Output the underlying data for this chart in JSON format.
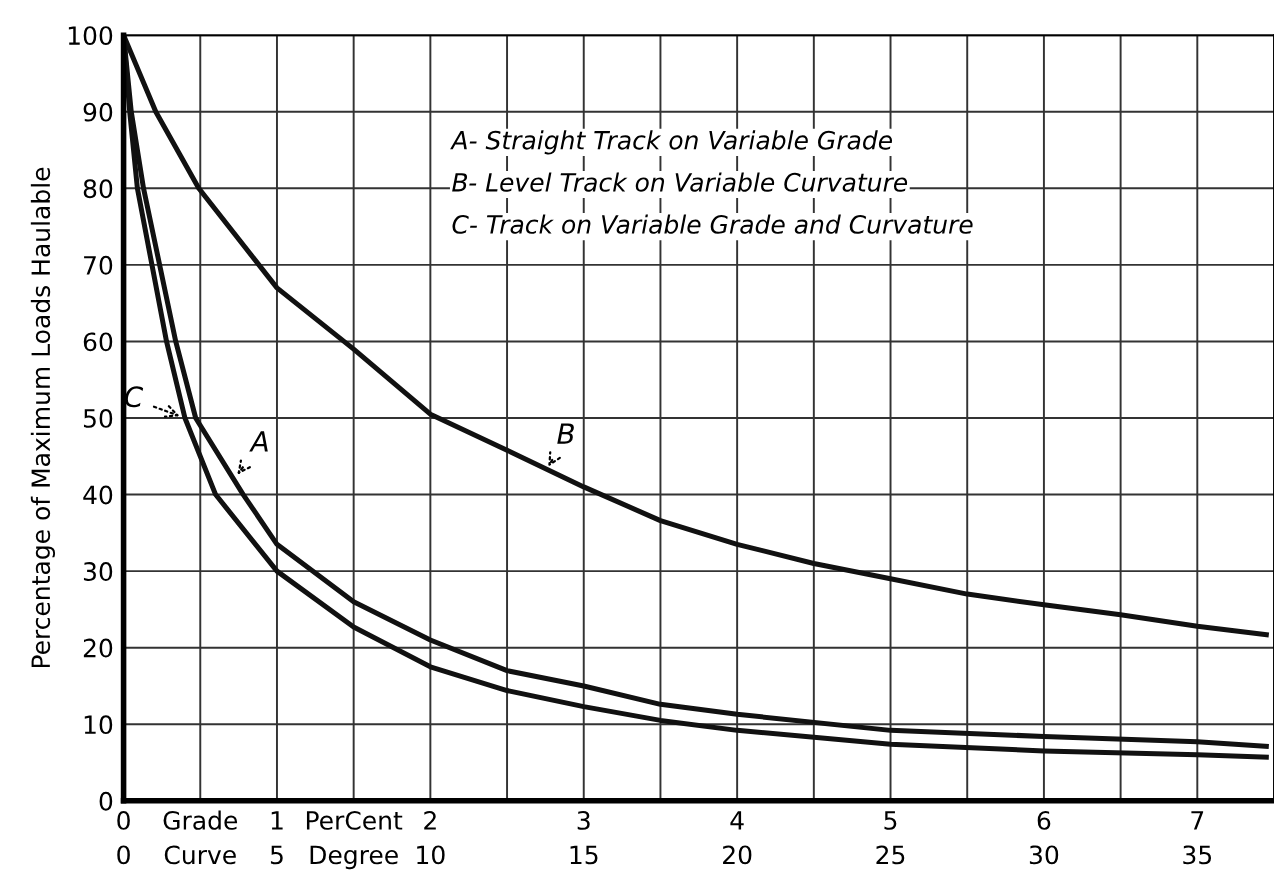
{
  "chart_data": {
    "type": "line",
    "ylabel": "Percentage of Maximum Loads Haulable",
    "xlim": [
      0,
      7.5
    ],
    "ylim": [
      0,
      100
    ],
    "xticks": [
      0,
      {
        "value": 0.5,
        "label": "Grade"
      },
      1,
      {
        "value": 1.5,
        "label": "PerCent"
      },
      2,
      {
        "value": 2.5,
        "label": null
      },
      3,
      {
        "value": 3.5,
        "label": null
      },
      4,
      {
        "value": 4.5,
        "label": null
      },
      5,
      {
        "value": 5.5,
        "label": null
      },
      6,
      {
        "value": 6.5,
        "label": null
      },
      7
    ],
    "x2lim": [
      0,
      37.5
    ],
    "x2ticks": [
      0,
      {
        "value": 2.5,
        "label": "Curve"
      },
      5,
      {
        "value": 7.5,
        "label": "Degree"
      },
      10,
      15,
      20,
      25,
      30,
      35
    ],
    "yticks": [
      0,
      10,
      20,
      30,
      40,
      50,
      60,
      70,
      80,
      90,
      100
    ],
    "grid": true,
    "legend": false,
    "marker": "none",
    "line_style": "solid",
    "series": [
      {
        "color": "#111111",
        "x": [
          0,
          0.05,
          0.13,
          0.34,
          0.47,
          0.78,
          1,
          1.5,
          2,
          2.5,
          3,
          3.5,
          4,
          5,
          6,
          7,
          7.45
        ],
        "values": [
          100,
          90,
          80,
          60,
          50,
          40,
          33.5,
          26,
          21,
          17,
          15,
          12.6,
          11.3,
          9.2,
          8.4,
          7.7,
          7.1
        ]
      },
      {
        "color": "#111111",
        "x": [
          0,
          0.21,
          0.49,
          1,
          1.5,
          2,
          2.5,
          3,
          3.5,
          4,
          4.5,
          5,
          5.5,
          6,
          6.5,
          7,
          7.45
        ],
        "values": [
          100,
          90,
          80,
          67,
          59,
          50.5,
          45.8,
          41,
          36.6,
          33.5,
          31,
          29,
          27,
          25.6,
          24.3,
          22.8,
          21.7
        ]
      },
      {
        "color": "#111111",
        "x": [
          0,
          0.04,
          0.09,
          0.28,
          0.4,
          0.6,
          1,
          1.5,
          2,
          2.5,
          3,
          3.5,
          4,
          5,
          6,
          7,
          7.45
        ],
        "values": [
          100,
          90,
          80,
          60,
          50,
          40,
          30,
          22.7,
          17.5,
          14.4,
          12.3,
          10.5,
          9.2,
          7.4,
          6.5,
          6.0,
          5.7
        ]
      }
    ],
    "annotations": [
      {
        "text": "A",
        "x": 0.72,
        "y": 42
      },
      {
        "text": "B",
        "x": 2.75,
        "y": 43
      },
      {
        "text": "C",
        "x": 0.4,
        "y": 50
      },
      "A- Straight Track on Variable Grade",
      "B- Level Track on Variable Curvature",
      "C- Track on Variable Grade and Curvature"
    ]
  }
}
